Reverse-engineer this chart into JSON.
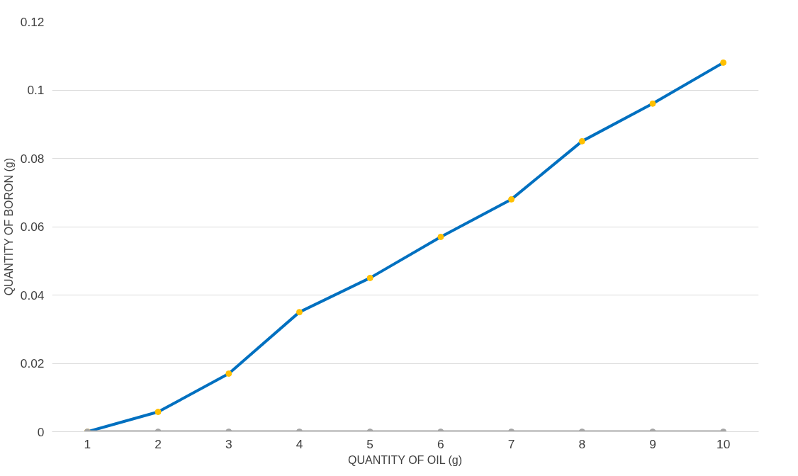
{
  "chart_data": {
    "type": "line",
    "xlabel": "QUANTITY OF OIL (g)",
    "ylabel": "QUANTITY OF BORON (g)",
    "categories": [
      "1",
      "2",
      "3",
      "4",
      "5",
      "6",
      "7",
      "8",
      "9",
      "10"
    ],
    "series": [
      {
        "color": "#0070c0",
        "colors": [
          "#ffc000",
          "#ffc000",
          "#ffc000",
          "#ffc000",
          "#ffc000",
          "#ffc000",
          "#ffc000",
          "#ffc000",
          "#ffc000",
          "#ffc000"
        ],
        "values": [
          0,
          0.0058,
          0.017,
          0.035,
          0.045,
          0.057,
          0.068,
          0.085,
          0.096,
          0.108
        ]
      },
      {
        "color": "#a5a5a5",
        "colors": [
          "#a5a5a5",
          "#a5a5a5",
          "#a5a5a5",
          "#a5a5a5",
          "#a5a5a5",
          "#a5a5a5",
          "#a5a5a5",
          "#a5a5a5",
          "#a5a5a5",
          "#a5a5a5"
        ],
        "values": [
          0,
          0,
          0,
          0,
          0,
          0,
          0,
          0,
          0,
          0
        ]
      }
    ],
    "ylim": [
      0,
      0.12
    ],
    "yticks": [
      0,
      0.02,
      0.04,
      0.06,
      0.08,
      0.1,
      0.12
    ],
    "grid": "y",
    "marker": "circle",
    "line_style": "solid"
  }
}
